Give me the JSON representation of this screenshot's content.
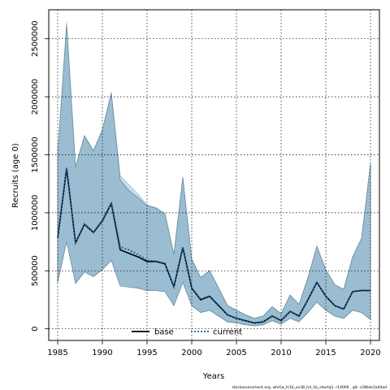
{
  "chart_data": {
    "type": "area",
    "xlabel": "Years",
    "ylabel": "Recruits (age 0)",
    "xlim": [
      1984,
      2021
    ],
    "ylim": [
      -100000,
      2750000
    ],
    "xticks": [
      1985,
      1990,
      1995,
      2000,
      2005,
      2010,
      2015,
      2020
    ],
    "yticks": [
      0,
      500000,
      1000000,
      1500000,
      2000000,
      2500000
    ],
    "grid": true,
    "legend_position": "bottom-center",
    "footnote": "stockassessment.org, whiGa_fc1b_ov38_hd_1b_shortq1, r14006 , git: c28bdc2a44ad",
    "x": [
      1985,
      1986,
      1987,
      1988,
      1989,
      1990,
      1991,
      1992,
      1993,
      1994,
      1995,
      1996,
      1997,
      1998,
      1999,
      2000,
      2001,
      2002,
      2003,
      2004,
      2005,
      2006,
      2007,
      2008,
      2009,
      2010,
      2011,
      2012,
      2013,
      2014,
      2015,
      2016,
      2017,
      2018,
      2019,
      2020
    ],
    "series": [
      {
        "name": "base",
        "color": "#000000",
        "values": [
          780000,
          1380000,
          740000,
          900000,
          830000,
          930000,
          1080000,
          680000,
          650000,
          620000,
          580000,
          580000,
          560000,
          360000,
          700000,
          350000,
          250000,
          280000,
          200000,
          120000,
          90000,
          70000,
          50000,
          60000,
          110000,
          70000,
          150000,
          110000,
          250000,
          400000,
          280000,
          200000,
          170000,
          320000,
          330000,
          330000
        ],
        "lower": [
          400000,
          750000,
          390000,
          490000,
          450000,
          510000,
          590000,
          370000,
          360000,
          350000,
          330000,
          330000,
          320000,
          200000,
          400000,
          200000,
          140000,
          160000,
          110000,
          60000,
          50000,
          35000,
          25000,
          35000,
          70000,
          40000,
          90000,
          60000,
          140000,
          230000,
          160000,
          110000,
          90000,
          160000,
          140000,
          80000
        ],
        "upper": [
          1500000,
          2620000,
          1390000,
          1660000,
          1530000,
          1710000,
          2030000,
          1280000,
          1190000,
          1130000,
          1060000,
          1040000,
          990000,
          640000,
          1300000,
          600000,
          440000,
          500000,
          350000,
          200000,
          160000,
          120000,
          90000,
          110000,
          190000,
          130000,
          290000,
          210000,
          440000,
          710000,
          510000,
          380000,
          340000,
          620000,
          780000,
          1420000
        ]
      },
      {
        "name": "current",
        "color": "#1f5d9e",
        "values": [
          780000,
          1390000,
          745000,
          905000,
          835000,
          935000,
          1085000,
          705000,
          680000,
          640000,
          590000,
          585000,
          565000,
          365000,
          705000,
          355000,
          255000,
          285000,
          205000,
          122000,
          92000,
          72000,
          52000,
          62000,
          112000,
          72000,
          152000,
          112000,
          252000,
          402000,
          282000,
          202000,
          172000,
          322000,
          332000,
          332000
        ],
        "lower": [
          410000,
          760000,
          395000,
          495000,
          455000,
          515000,
          600000,
          385000,
          375000,
          360000,
          335000,
          335000,
          325000,
          205000,
          405000,
          205000,
          145000,
          165000,
          115000,
          62000,
          52000,
          37000,
          27000,
          37000,
          72000,
          42000,
          92000,
          62000,
          145000,
          235000,
          165000,
          115000,
          95000,
          165000,
          145000,
          85000
        ],
        "upper": [
          1510000,
          2640000,
          1400000,
          1670000,
          1540000,
          1720000,
          2040000,
          1320000,
          1240000,
          1160000,
          1070000,
          1045000,
          995000,
          645000,
          1310000,
          605000,
          445000,
          505000,
          355000,
          202000,
          162000,
          122000,
          92000,
          112000,
          192000,
          132000,
          292000,
          212000,
          445000,
          712000,
          512000,
          382000,
          342000,
          622000,
          782000,
          1425000
        ]
      }
    ]
  }
}
